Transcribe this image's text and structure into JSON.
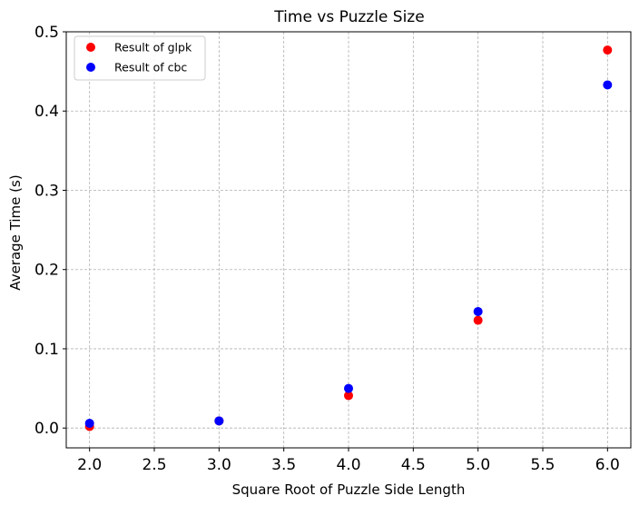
{
  "chart_data": {
    "type": "scatter",
    "title": "Time vs Puzzle Size",
    "xlabel": "Square Root of Puzzle Side Length",
    "ylabel": "Average Time (s)",
    "xlim": [
      1.82,
      6.18
    ],
    "ylim": [
      -0.025,
      0.5
    ],
    "xticks": [
      "2.0",
      "2.5",
      "3.0",
      "3.5",
      "4.0",
      "4.5",
      "5.0",
      "5.5",
      "6.0"
    ],
    "yticks": [
      "0.0",
      "0.1",
      "0.2",
      "0.3",
      "0.4",
      "0.5"
    ],
    "grid": true,
    "legend_position": "top-left",
    "series": [
      {
        "name": "Result of glpk",
        "color": "#ff0000",
        "x": [
          2,
          3,
          4,
          5,
          6
        ],
        "y": [
          0.002,
          0.009,
          0.041,
          0.136,
          0.477
        ]
      },
      {
        "name": "Result of cbc",
        "color": "#0000ff",
        "x": [
          2,
          3,
          4,
          5,
          6
        ],
        "y": [
          0.006,
          0.009,
          0.05,
          0.147,
          0.433
        ]
      }
    ]
  }
}
